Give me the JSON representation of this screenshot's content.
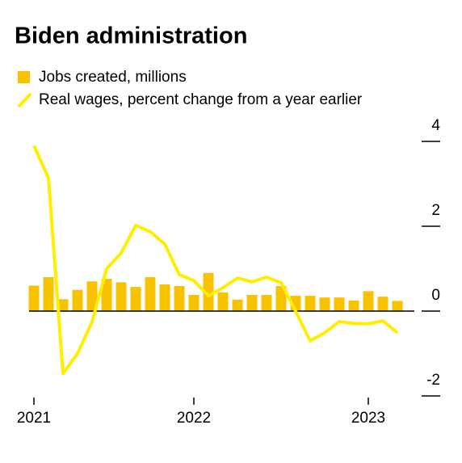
{
  "chart_data": {
    "type": "bar_line",
    "title": "Biden administration",
    "categories": [
      "2021",
      null,
      null,
      null,
      null,
      null,
      null,
      null,
      null,
      null,
      null,
      "2022",
      null,
      null,
      null,
      null,
      null,
      null,
      null,
      null,
      null,
      null,
      null,
      "2023",
      null,
      null
    ],
    "series": [
      {
        "name": "Jobs created, millions",
        "type": "bar",
        "color": "#f7c200",
        "values": [
          0.6,
          0.8,
          0.28,
          0.5,
          0.7,
          0.76,
          0.68,
          0.57,
          0.8,
          0.63,
          0.59,
          0.38,
          0.9,
          0.44,
          0.27,
          0.38,
          0.38,
          0.59,
          0.36,
          0.36,
          0.32,
          0.32,
          0.25,
          0.47,
          0.34,
          0.24
        ]
      },
      {
        "name": "Real wages, percent change from a year earlier",
        "type": "line",
        "color": "#ffee00",
        "values": [
          3.9,
          3.14,
          -1.47,
          -1.0,
          -0.25,
          1.0,
          1.37,
          2.02,
          1.87,
          1.58,
          0.86,
          0.72,
          0.36,
          0.55,
          0.78,
          0.69,
          0.8,
          0.67,
          0.0,
          -0.7,
          -0.51,
          -0.25,
          -0.29,
          -0.3,
          -0.23,
          -0.51
        ]
      }
    ],
    "ylim": [
      -2.2,
      4.4
    ],
    "yticks": [
      4,
      2,
      0,
      -2
    ]
  }
}
